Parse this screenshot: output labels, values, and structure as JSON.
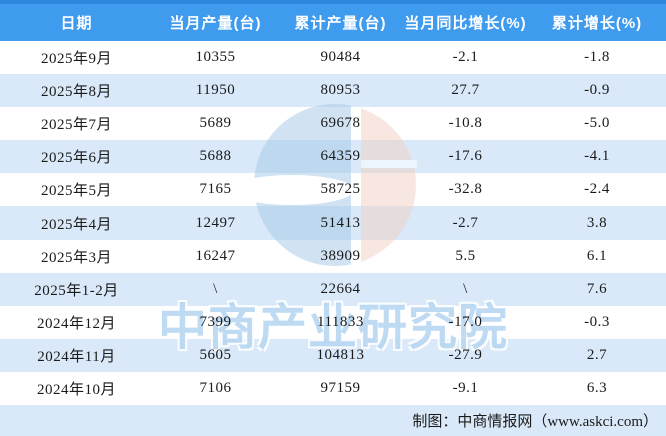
{
  "chart_data": {
    "type": "table",
    "title": "",
    "columns": [
      "日期",
      "当月产量(台)",
      "累计产量(台)",
      "当月同比增长(%)",
      "累计增长(%)"
    ],
    "rows": [
      [
        "2025年9月",
        "10355",
        "90484",
        "-2.1",
        "-1.8"
      ],
      [
        "2025年8月",
        "11950",
        "80953",
        "27.7",
        "-0.9"
      ],
      [
        "2025年7月",
        "5689",
        "69678",
        "-10.8",
        "-5.0"
      ],
      [
        "2025年6月",
        "5688",
        "64359",
        "-17.6",
        "-4.1"
      ],
      [
        "2025年5月",
        "7165",
        "58725",
        "-32.8",
        "-2.4"
      ],
      [
        "2025年4月",
        "12497",
        "51413",
        "-2.7",
        "3.8"
      ],
      [
        "2025年3月",
        "16247",
        "38909",
        "5.5",
        "6.1"
      ],
      [
        "2025年1-2月",
        "\\",
        "22664",
        "\\",
        "7.6"
      ],
      [
        "2024年12月",
        "7399",
        "111833",
        "-17.0",
        "-0.3"
      ],
      [
        "2024年11月",
        "5605",
        "104813",
        "-27.9",
        "2.7"
      ],
      [
        "2024年10月",
        "7106",
        "97159",
        "-9.1",
        "6.3"
      ]
    ]
  },
  "watermark": {
    "text": "中商产业研究院",
    "logo": "askci-logo"
  },
  "footer": {
    "credit": "制图：中商情报网（www.askci.com）"
  },
  "colors": {
    "header_bg": "#3E9BEE",
    "header_top": "#2D87DD",
    "stripe": "#D9E9F9",
    "header_text": "#FFFFFF",
    "body_text": "#1A1A1A",
    "watermark_blue": "#A5C9E6",
    "watermark_pink": "#F2D0C4",
    "watermark_text": "#B9D8F2"
  }
}
